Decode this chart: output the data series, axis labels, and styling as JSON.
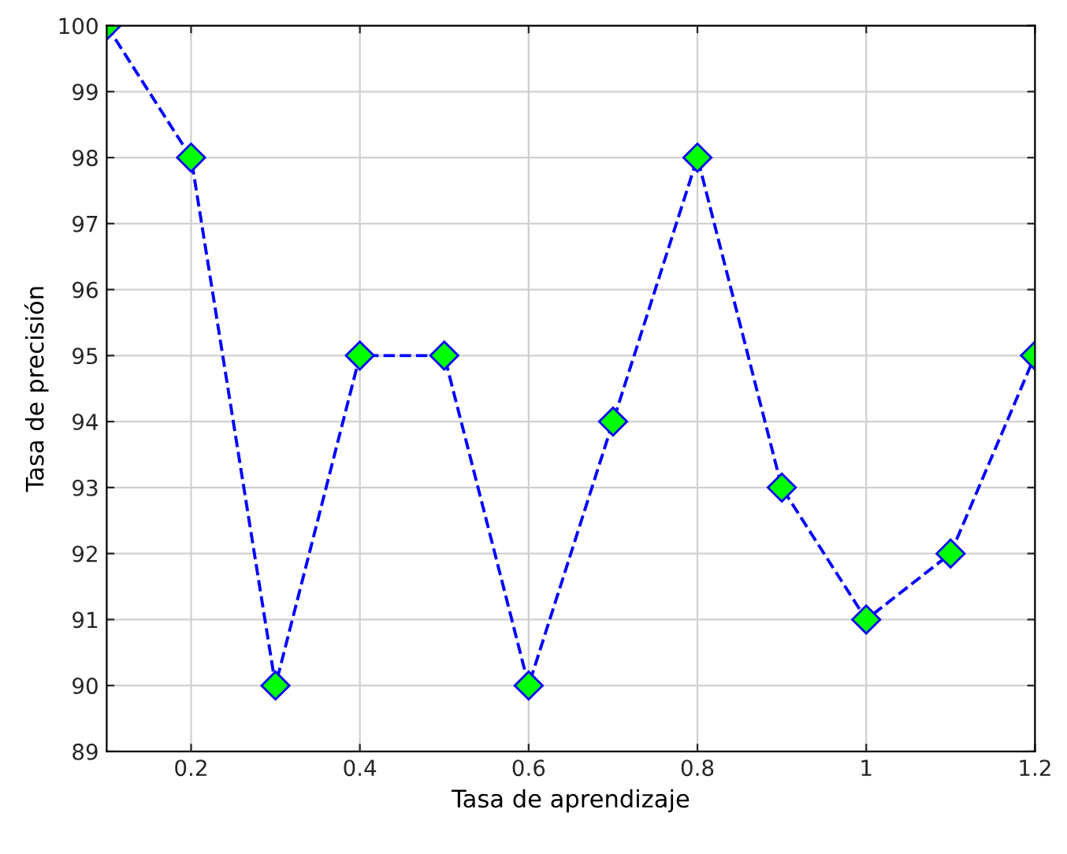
{
  "chart_data": {
    "type": "line",
    "xlabel": "Tasa de aprendizaje",
    "ylabel": "Tasa de precisión",
    "x": [
      0.1,
      0.2,
      0.3,
      0.4,
      0.5,
      0.6,
      0.7,
      0.8,
      0.9,
      1,
      1.1,
      1.2
    ],
    "series": [
      {
        "color": "#0000ff",
        "values": [
          100,
          98,
          90,
          95,
          95,
          90,
          94,
          98,
          93,
          91,
          92,
          95
        ]
      }
    ],
    "xlim": [
      0.1,
      1.2
    ],
    "xticks": [
      0.2,
      0.4,
      0.6,
      0.8,
      1,
      1.2
    ],
    "ylim": [
      89,
      100
    ],
    "yticks": [
      89,
      90,
      91,
      92,
      93,
      94,
      95,
      96,
      97,
      98,
      99,
      100
    ],
    "grid": true,
    "marker": "diamond",
    "line_style": "dashed"
  }
}
